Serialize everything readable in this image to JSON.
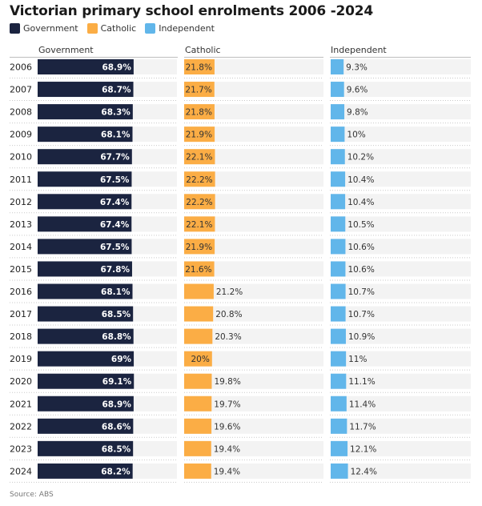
{
  "title": "Victorian primary school enrolments 2006 -2024",
  "legend": [
    {
      "name": "Government",
      "color": "#1b2440"
    },
    {
      "name": "Catholic",
      "color": "#fbad45"
    },
    {
      "name": "Independent",
      "color": "#61b6ea"
    }
  ],
  "source": "Source: ABS",
  "chart_data": {
    "type": "bar",
    "title": "Victorian primary school enrolments 2006 -2024",
    "categories": [
      "2006",
      "2007",
      "2008",
      "2009",
      "2010",
      "2011",
      "2012",
      "2013",
      "2014",
      "2015",
      "2016",
      "2017",
      "2018",
      "2019",
      "2020",
      "2021",
      "2022",
      "2023",
      "2024"
    ],
    "series": [
      {
        "name": "Government",
        "color": "#1b2440",
        "values": [
          68.9,
          68.7,
          68.3,
          68.1,
          67.7,
          67.5,
          67.4,
          67.4,
          67.5,
          67.8,
          68.1,
          68.5,
          68.8,
          69,
          69.1,
          68.9,
          68.6,
          68.5,
          68.2
        ]
      },
      {
        "name": "Catholic",
        "color": "#fbad45",
        "values": [
          21.8,
          21.7,
          21.8,
          21.9,
          22.1,
          22.2,
          22.2,
          22.1,
          21.9,
          21.6,
          21.2,
          20.8,
          20.3,
          20,
          19.8,
          19.7,
          19.6,
          19.4,
          19.4
        ]
      },
      {
        "name": "Independent",
        "color": "#61b6ea",
        "values": [
          9.3,
          9.6,
          9.8,
          10,
          10.2,
          10.4,
          10.4,
          10.5,
          10.6,
          10.6,
          10.7,
          10.7,
          10.9,
          11,
          11.1,
          11.4,
          11.7,
          12.1,
          12.4
        ]
      }
    ],
    "unit": "%",
    "xlim": [
      0,
      100
    ],
    "background_color": "#f3f3f3",
    "legend_position": "top-left",
    "grid": false
  }
}
